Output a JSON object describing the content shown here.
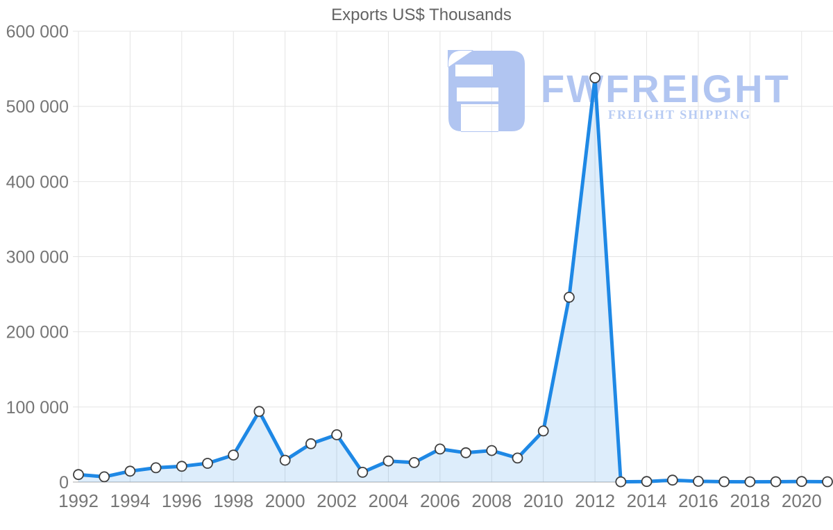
{
  "chart_data": {
    "type": "area",
    "title": "Exports US$ Thousands",
    "series_name": "Exports",
    "x": [
      1992,
      1993,
      1994,
      1995,
      1996,
      1997,
      1998,
      1999,
      2000,
      2001,
      2002,
      2003,
      2004,
      2005,
      2006,
      2007,
      2008,
      2009,
      2010,
      2011,
      2012,
      2013,
      2014,
      2015,
      2016,
      2017,
      2018,
      2019,
      2020,
      2021
    ],
    "values": [
      10000,
      7000,
      14500,
      19000,
      21000,
      25000,
      36000,
      94000,
      29000,
      51000,
      63000,
      13000,
      28000,
      26000,
      44000,
      39000,
      42000,
      32000,
      68000,
      246000,
      538000,
      400,
      700,
      2600,
      1000,
      500,
      400,
      500,
      700,
      500
    ],
    "xlabel": "",
    "ylabel": "",
    "ylim": [
      0,
      600000
    ],
    "yticks": [
      0,
      100000,
      200000,
      300000,
      400000,
      500000,
      600000
    ],
    "ytick_labels": [
      "0",
      "100 000",
      "200 000",
      "300 000",
      "400 000",
      "500 000",
      "600 000"
    ],
    "xticks": [
      1992,
      1994,
      1996,
      1998,
      2000,
      2002,
      2004,
      2006,
      2008,
      2010,
      2012,
      2014,
      2016,
      2018,
      2020
    ],
    "xtick_labels": [
      "1992",
      "1994",
      "1996",
      "1998",
      "2000",
      "2002",
      "2004",
      "2006",
      "2008",
      "2010",
      "2012",
      "2014",
      "2016",
      "2018",
      "2020"
    ],
    "grid": true,
    "legend": false,
    "colors": {
      "line": "#1e88e5",
      "area_fill": "rgba(30,136,229,0.15)",
      "marker_fill": "#ffffff",
      "marker_stroke": "#3f3f3f",
      "gridline": "#e4e4e4",
      "zero_line": "#ababab",
      "tick_label": "#767676",
      "title": "#636363"
    }
  },
  "watermark": {
    "brand": "FWFREIGHT",
    "tagline": "FREIGHT SHIPPING",
    "color": "#b1c5f1"
  }
}
